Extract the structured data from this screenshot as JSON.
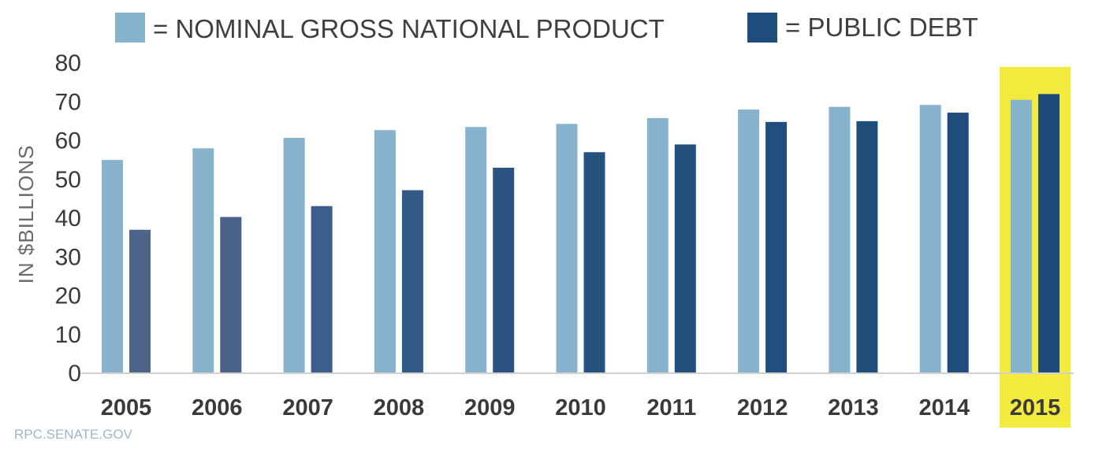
{
  "chart_data": {
    "type": "bar",
    "title": "",
    "xlabel": "",
    "ylabel": "IN $BILLIONS",
    "ylim": [
      0,
      80
    ],
    "yticks": [
      0,
      10,
      20,
      30,
      40,
      50,
      60,
      70,
      80
    ],
    "categories": [
      "2005",
      "2006",
      "2007",
      "2008",
      "2009",
      "2010",
      "2011",
      "2012",
      "2013",
      "2014",
      "2015"
    ],
    "highlight_category": "2015",
    "series": [
      {
        "name": "= NOMINAL GROSS NATIONAL PRODUCT",
        "color": "#88b3cd",
        "values": [
          55,
          58,
          60.7,
          62.7,
          63.5,
          64.3,
          65.8,
          68,
          68.7,
          69.2,
          70.5
        ]
      },
      {
        "name": "= PUBLIC DEBT",
        "colors": [
          "#4e6488",
          "#48628a",
          "#3d5e8a",
          "#335a85",
          "#2a5581",
          "#26527f",
          "#22507d",
          "#214e7c",
          "#204e7b",
          "#1f4d7b",
          "#1e4c7a"
        ],
        "color": "#1f4d7b",
        "values": [
          37,
          40.3,
          43.1,
          47.2,
          53,
          57,
          59,
          64.8,
          65,
          67.2,
          72
        ]
      }
    ],
    "colors": {
      "highlight": "#f2ea3c",
      "axis": "#d0d0d0"
    }
  },
  "source": "RPC.SENATE.GOV"
}
